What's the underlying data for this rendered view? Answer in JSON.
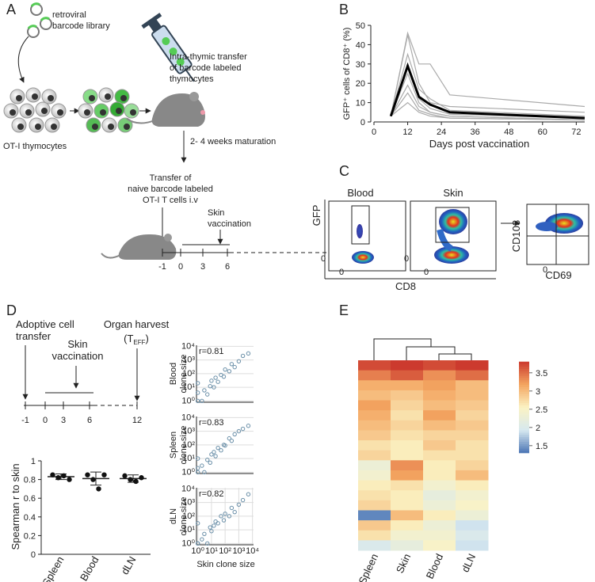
{
  "panel_labels": [
    "A",
    "B",
    "C",
    "D",
    "E"
  ],
  "panel_a": {
    "library": [
      "retroviral",
      "barcode library"
    ],
    "transfer": [
      "Intra-thymic transfer",
      "of barcode labeled",
      "thymocytes"
    ],
    "thymocytes": "OT-I thymocytes",
    "maturation": "2- 4 weeks maturation",
    "naive": [
      "Transfer of",
      "naive barcode labeled",
      "OT-I T cells i.v"
    ],
    "vaccination": [
      "Skin",
      "vaccination"
    ],
    "timeline": [
      "-1",
      "0",
      "3",
      "6"
    ]
  },
  "panel_c": {
    "titles": [
      "Blood",
      "Skin"
    ],
    "y_label": "GFP",
    "x_label": "CD8",
    "zero": "0",
    "gate_y_label": "CD103",
    "gate_x_label": "CD69"
  },
  "panel_d": {
    "adoptive": [
      "Adoptive cell",
      "transfer"
    ],
    "vaccination": [
      "Skin",
      "vaccination"
    ],
    "harvest": "Organ harvest",
    "teff_open": "(T",
    "teff_sub": "EFF",
    "teff_close": ")",
    "timeline": [
      "-1",
      "0",
      "3",
      "6",
      "12"
    ]
  },
  "chart_data": [
    {
      "type": "line",
      "x_label": "Days post vaccination",
      "y_label": "GFP⁺ cells of CD8⁺ (%)",
      "x": [
        6,
        12,
        16,
        20,
        27,
        75
      ],
      "series": [
        {
          "color": "#aaaaaa",
          "line_width": 1.2,
          "values": [
            3,
            46,
            30,
            30,
            14,
            8
          ]
        },
        {
          "color": "#aaaaaa",
          "line_width": 1.2,
          "values": [
            3,
            45,
            20,
            10,
            8,
            5
          ]
        },
        {
          "color": "#aaaaaa",
          "line_width": 1.2,
          "values": [
            3,
            35,
            17,
            12,
            6,
            3
          ]
        },
        {
          "color": "#aaaaaa",
          "line_width": 1.2,
          "values": [
            3,
            30,
            12,
            7,
            4,
            2
          ]
        },
        {
          "color": "#aaaaaa",
          "line_width": 1.2,
          "values": [
            3,
            25,
            10,
            5,
            3,
            1
          ]
        },
        {
          "color": "#aaaaaa",
          "line_width": 1.2,
          "values": [
            3,
            19,
            8,
            5,
            3,
            1
          ]
        },
        {
          "color": "#aaaaaa",
          "line_width": 1.2,
          "values": [
            3,
            15,
            6,
            4,
            2,
            1
          ]
        },
        {
          "color": "#aaaaaa",
          "line_width": 1.2,
          "values": [
            3,
            10,
            5,
            3,
            2,
            1
          ]
        },
        {
          "color": "#000000",
          "line_width": 3,
          "values": [
            3,
            29,
            13,
            9,
            5,
            2
          ]
        }
      ],
      "xlim": [
        0,
        75
      ],
      "xticks": [
        0,
        12,
        24,
        36,
        48,
        60,
        72
      ],
      "ylim": [
        0,
        50
      ],
      "yticks": [
        0,
        10,
        20,
        30,
        40,
        50
      ]
    },
    {
      "type": "dot",
      "y_label": "Spearman r to skin",
      "categories": [
        "Spleen",
        "Blood",
        "dLN"
      ],
      "points": [
        [
          0.85,
          0.82,
          0.84,
          0.8
        ],
        [
          0.85,
          0.8,
          0.7,
          0.85
        ],
        [
          0.84,
          0.8,
          0.78,
          0.82
        ]
      ],
      "means": [
        0.83,
        0.81,
        0.81
      ],
      "errors": [
        0.03,
        0.07,
        0.04
      ],
      "ylim": [
        0,
        1
      ],
      "yticks": [
        0,
        0.2,
        0.4,
        0.6,
        0.8,
        1
      ]
    },
    {
      "type": "scatter",
      "y_label": [
        "Blood",
        "clone size"
      ],
      "annotation": "r=0.81",
      "log": true,
      "x": [
        1,
        1,
        1,
        2,
        3,
        5,
        8,
        10,
        15,
        20,
        30,
        50,
        80,
        100,
        200,
        300,
        500,
        1000,
        2000,
        5000
      ],
      "y": [
        1,
        4,
        20,
        1,
        6,
        3,
        12,
        30,
        10,
        50,
        25,
        80,
        60,
        200,
        150,
        500,
        300,
        800,
        2000,
        3000
      ],
      "xlim": [
        0.8,
        12000
      ],
      "ylim": [
        0.8,
        12000
      ],
      "yticks": [
        {
          "value": 1,
          "label": "10⁰"
        },
        {
          "value": 10,
          "label": "10¹"
        },
        {
          "value": 100,
          "label": "10²"
        },
        {
          "value": 1000,
          "label": "10³"
        },
        {
          "value": 10000,
          "label": "10⁴"
        }
      ],
      "color": "#6a8fa8"
    },
    {
      "type": "scatter",
      "y_label": [
        "Spleen",
        "clone size"
      ],
      "annotation": "r=0.83",
      "log": true,
      "x": [
        1,
        1,
        1,
        2,
        3,
        5,
        8,
        10,
        15,
        20,
        30,
        50,
        80,
        100,
        200,
        300,
        500,
        1000,
        2000,
        5000
      ],
      "y": [
        1,
        2,
        10,
        3,
        1,
        8,
        5,
        20,
        30,
        15,
        60,
        40,
        100,
        90,
        300,
        200,
        600,
        1000,
        1500,
        2500
      ],
      "xlim": [
        0.8,
        12000
      ],
      "ylim": [
        0.8,
        12000
      ],
      "yticks": [
        {
          "value": 1,
          "label": "10⁰"
        },
        {
          "value": 10,
          "label": "10¹"
        },
        {
          "value": 100,
          "label": "10²"
        },
        {
          "value": 1000,
          "label": "10³"
        },
        {
          "value": 10000,
          "label": "10⁴"
        }
      ],
      "color": "#6a8fa8"
    },
    {
      "type": "scatter",
      "y_label": [
        "dLN",
        "clone size"
      ],
      "x_label": "Skin clone size",
      "annotation": "r=0.82",
      "log": true,
      "x": [
        1,
        1,
        1,
        2,
        3,
        5,
        8,
        10,
        15,
        20,
        30,
        50,
        80,
        100,
        200,
        300,
        500,
        1000,
        2000,
        5000
      ],
      "y": [
        1,
        1,
        30,
        2,
        5,
        1,
        15,
        8,
        20,
        40,
        30,
        100,
        50,
        150,
        100,
        400,
        200,
        700,
        1500,
        4000
      ],
      "xlim": [
        0.8,
        12000
      ],
      "ylim": [
        0.8,
        12000
      ],
      "xticks": [
        {
          "value": 1,
          "label": "10⁰"
        },
        {
          "value": 10,
          "label": "10¹"
        },
        {
          "value": 100,
          "label": "10²"
        },
        {
          "value": 1000,
          "label": "10³"
        },
        {
          "value": 10000,
          "label": "10⁴"
        }
      ],
      "yticks": [
        {
          "value": 1,
          "label": "10⁰"
        },
        {
          "value": 10,
          "label": "10¹"
        },
        {
          "value": 100,
          "label": "10²"
        },
        {
          "value": 1000,
          "label": "10³"
        },
        {
          "value": 10000,
          "label": "10⁴"
        }
      ],
      "color": "#6a8fa8"
    },
    {
      "type": "heatmap",
      "columns": [
        "Spleen",
        "Skin",
        "Blood",
        "dLN"
      ],
      "values": [
        [
          3.7,
          3.8,
          3.7,
          3.8
        ],
        [
          3.4,
          3.6,
          3.3,
          3.5
        ],
        [
          3.1,
          3.1,
          3.2,
          3.0
        ],
        [
          3.0,
          2.9,
          3.1,
          3.0
        ],
        [
          3.2,
          2.8,
          3.0,
          2.9
        ],
        [
          3.1,
          2.7,
          3.2,
          2.8
        ],
        [
          3.0,
          2.8,
          3.0,
          2.9
        ],
        [
          2.9,
          2.7,
          2.8,
          2.8
        ],
        [
          2.7,
          2.6,
          2.9,
          2.7
        ],
        [
          2.8,
          2.6,
          2.7,
          2.7
        ],
        [
          2.3,
          3.3,
          2.6,
          2.8
        ],
        [
          2.4,
          3.2,
          2.6,
          3.0
        ],
        [
          2.6,
          2.7,
          2.4,
          2.6
        ],
        [
          2.7,
          2.6,
          2.2,
          2.4
        ],
        [
          2.8,
          2.6,
          2.3,
          2.5
        ],
        [
          1.4,
          3.0,
          2.6,
          2.3
        ],
        [
          2.9,
          2.6,
          2.3,
          1.9
        ],
        [
          2.7,
          2.4,
          2.4,
          2.0
        ],
        [
          2.0,
          2.2,
          2.5,
          1.9
        ]
      ],
      "clim": [
        1.3,
        3.8
      ],
      "colorbar_ticks": [
        1.5,
        2,
        2.5,
        3,
        3.5
      ],
      "colormap": [
        "#4a74b4",
        "#d6e8f0",
        "#fbf3c4",
        "#f4a661",
        "#cc3a2e"
      ]
    }
  ]
}
